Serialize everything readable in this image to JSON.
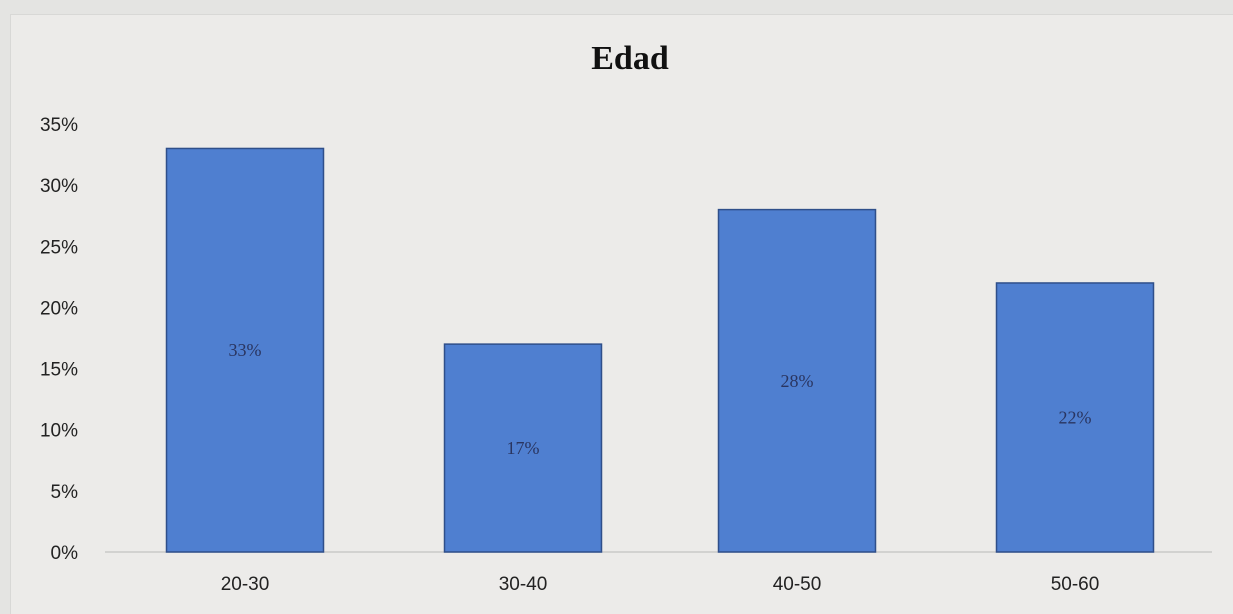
{
  "chart_data": {
    "type": "bar",
    "title": "Edad",
    "xlabel": "",
    "ylabel": "",
    "categories": [
      "20-30",
      "30-40",
      "40-50",
      "50-60"
    ],
    "values": [
      33,
      17,
      28,
      22
    ],
    "data_labels": [
      "33%",
      "17%",
      "28%",
      "22%"
    ],
    "ylim": [
      0,
      35
    ],
    "yticks": [
      "0%",
      "5%",
      "10%",
      "15%",
      "20%",
      "25%",
      "30%",
      "35%"
    ],
    "grid": false,
    "legend": "none",
    "bar_color": "#4f7fd0"
  }
}
